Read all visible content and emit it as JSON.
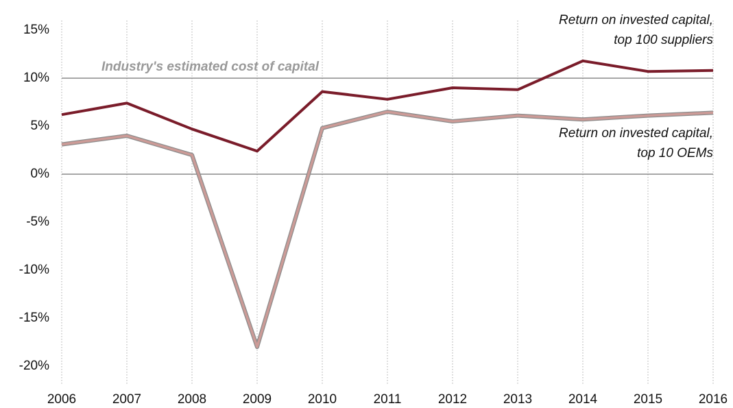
{
  "chart_data": {
    "type": "line",
    "categories": [
      "2006",
      "2007",
      "2008",
      "2009",
      "2010",
      "2011",
      "2012",
      "2013",
      "2014",
      "2015",
      "2016"
    ],
    "series": [
      {
        "name": "Return on invested capital, top 100 suppliers",
        "color": "#7a1c2a",
        "values": [
          6.2,
          7.4,
          4.7,
          2.4,
          8.6,
          7.8,
          9.0,
          8.8,
          11.8,
          10.7,
          10.8
        ]
      },
      {
        "name": "Return on invested capital, top 10 OEMs",
        "color": "#cc9b97",
        "values": [
          3.1,
          4.0,
          2.0,
          -18.0,
          4.8,
          6.5,
          5.5,
          6.1,
          5.7,
          6.1,
          6.4
        ]
      }
    ],
    "reference_lines": [
      {
        "label": "Industry's estimated cost of capital",
        "value": 10
      }
    ],
    "ylim": [
      -22,
      16
    ],
    "yticks": [
      {
        "value": 15,
        "label": "15%"
      },
      {
        "value": 10,
        "label": "10%"
      },
      {
        "value": 5,
        "label": "5%"
      },
      {
        "value": 0,
        "label": "0%"
      },
      {
        "value": -5,
        "label": "-5%"
      },
      {
        "value": -10,
        "label": "-10%"
      },
      {
        "value": -15,
        "label": "-15%"
      },
      {
        "value": -20,
        "label": "-20%"
      }
    ],
    "grid": true
  }
}
